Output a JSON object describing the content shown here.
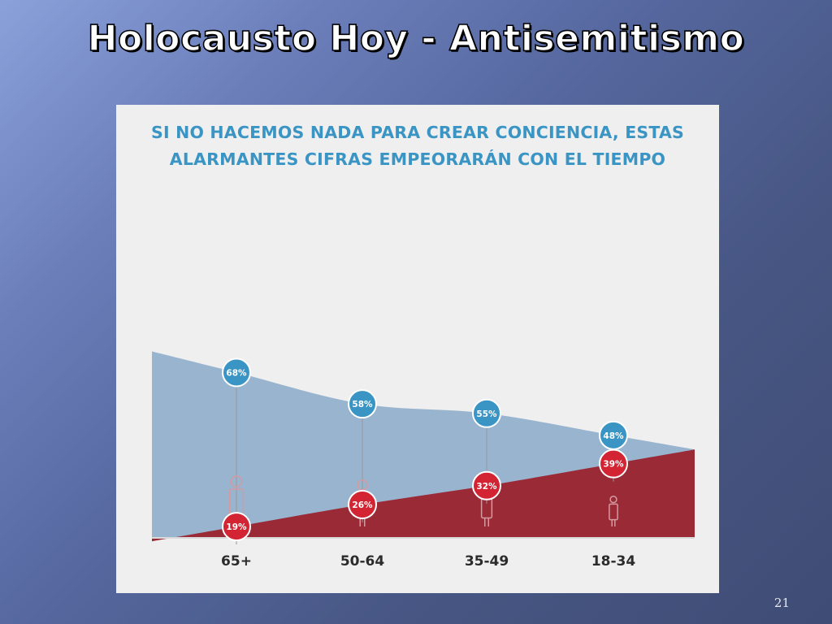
{
  "slide": {
    "title": "Holocausto Hoy - Antisemitismo",
    "number": "21"
  },
  "chart_data": {
    "type": "area",
    "title_lines": [
      "SI NO HACEMOS NADA PARA CREAR CONCIENCIA, ESTAS",
      "ALARMANTES CIFRAS EMPEORARÁN CON EL TIEMPO"
    ],
    "categories": [
      "65+",
      "50-64",
      "35-49",
      "18-34"
    ],
    "ylim": [
      0,
      100
    ],
    "series": [
      {
        "values": [
          68,
          58,
          55,
          48
        ],
        "labels": [
          "68%",
          "58%",
          "55%",
          "48%"
        ]
      },
      {
        "values": [
          19,
          26,
          32,
          39
        ],
        "labels": [
          "19%",
          "26%",
          "32%",
          "39%"
        ]
      }
    ],
    "colors": {
      "upper_area": "#98b4cf",
      "lower_area": "#9a2a35",
      "upper_marker": "#3a95c4",
      "lower_marker": "#d32433",
      "headline": "#3a95c4",
      "category_text": "#2b2b2b"
    },
    "grid": false,
    "legend": "none"
  }
}
